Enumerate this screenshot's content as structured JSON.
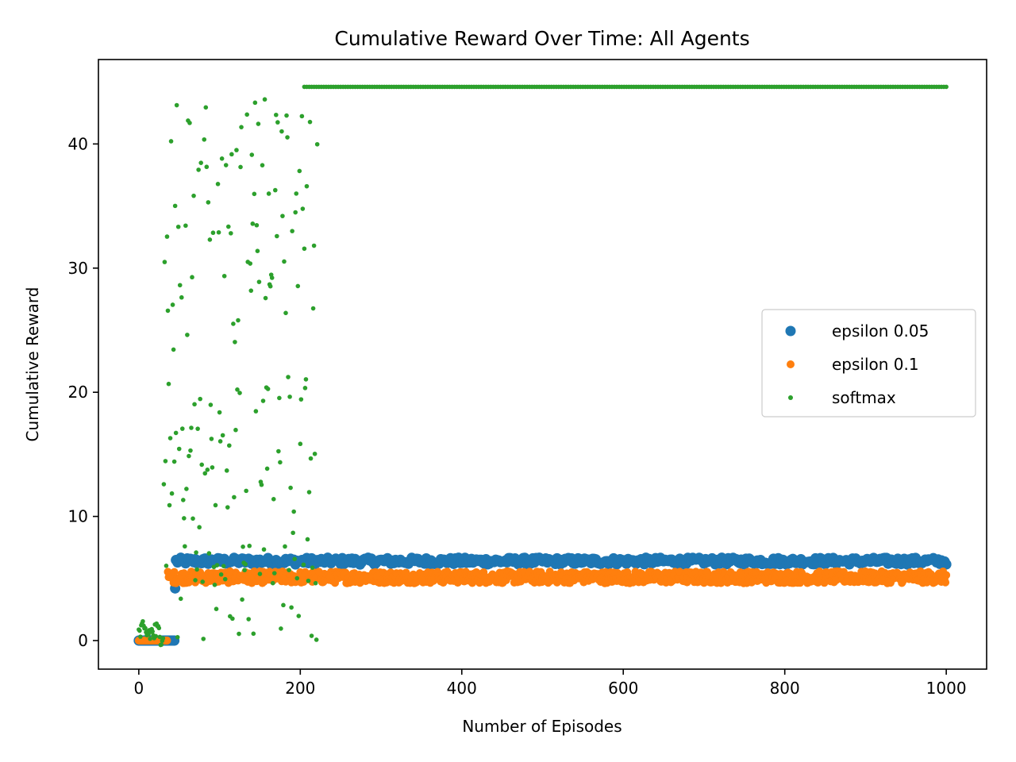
{
  "chart_data": {
    "type": "scatter",
    "title": "Cumulative Reward Over Time: All Agents",
    "xlabel": "Number of Episodes",
    "ylabel": "Cumulative Reward",
    "xlim": [
      -50,
      1050
    ],
    "ylim": [
      -2.3,
      46.8
    ],
    "xticks": [
      0,
      200,
      400,
      600,
      800,
      1000
    ],
    "yticks": [
      0,
      10,
      20,
      30,
      40
    ],
    "xtick_labels": [
      "0",
      "200",
      "400",
      "600",
      "800",
      "1000"
    ],
    "ytick_labels": [
      "0",
      "10",
      "20",
      "30",
      "40"
    ],
    "grid": false,
    "legend_position": "right",
    "series": [
      {
        "name": "epsilon 0.05",
        "color": "#1f77b4",
        "marker": "large",
        "segments": [
          {
            "x_start": 0,
            "x_end": 44,
            "value": 0.0
          },
          {
            "x_start": 45,
            "x_end": 45,
            "value": 4.2
          },
          {
            "x_start": 46,
            "x_end": 1000,
            "value": 6.4,
            "spread": 0.35
          }
        ]
      },
      {
        "name": "epsilon 0.1",
        "color": "#ff7f0e",
        "marker": "medium",
        "segments": [
          {
            "x_start": 0,
            "x_end": 35,
            "value": 0.0
          },
          {
            "x_start": 36,
            "x_end": 1000,
            "value": 5.1,
            "spread": 0.6
          }
        ]
      },
      {
        "name": "softmax",
        "color": "#2ca02c",
        "marker": "small",
        "segments": [
          {
            "x_start": 0,
            "x_end": 30,
            "value": 0.6,
            "spread": 1.2
          },
          {
            "x_start": 31,
            "x_end": 221,
            "value": 22.0,
            "spread": 22.0,
            "note_range": [
              0,
              43.8
            ]
          },
          {
            "x_start": 205,
            "x_end": 1000,
            "value": 44.6
          }
        ]
      }
    ],
    "legend": [
      {
        "label": "epsilon 0.05",
        "color": "#1f77b4"
      },
      {
        "label": "epsilon 0.1",
        "color": "#ff7f0e"
      },
      {
        "label": "softmax",
        "color": "#2ca02c"
      }
    ]
  }
}
